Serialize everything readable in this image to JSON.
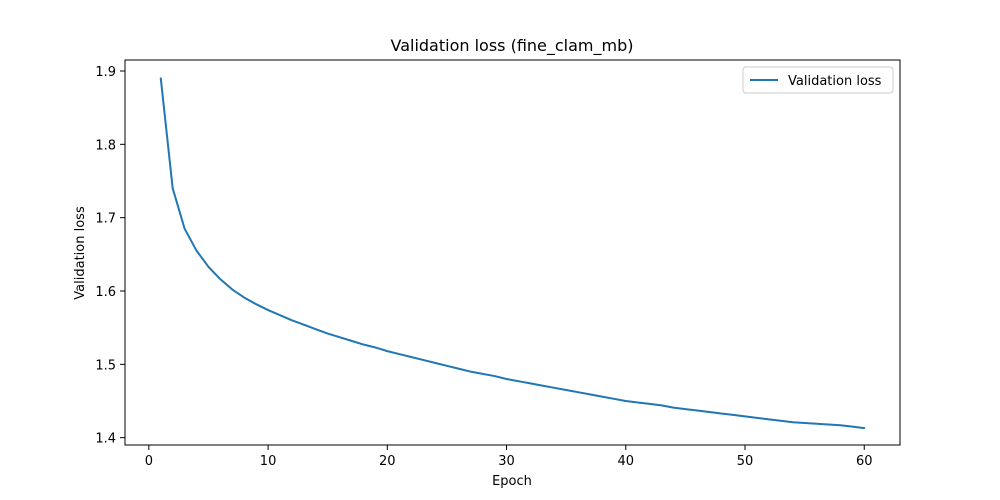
{
  "chart_data": {
    "type": "line",
    "title": "Validation loss (fine_clam_mb)",
    "xlabel": "Epoch",
    "ylabel": "Validation loss",
    "xlim": [
      -2,
      63
    ],
    "ylim": [
      1.39,
      1.915
    ],
    "xticks": [
      0,
      10,
      20,
      30,
      40,
      50,
      60
    ],
    "yticks": [
      1.4,
      1.5,
      1.6,
      1.7,
      1.8,
      1.9
    ],
    "grid": false,
    "legend": {
      "placement": "top-right",
      "entries": [
        "Validation loss"
      ]
    },
    "series": [
      {
        "name": "Validation loss",
        "color": "#1f77b4",
        "x": [
          1,
          2,
          3,
          4,
          5,
          6,
          7,
          8,
          9,
          10,
          11,
          12,
          13,
          14,
          15,
          16,
          17,
          18,
          19,
          20,
          21,
          22,
          23,
          24,
          25,
          26,
          27,
          28,
          29,
          30,
          31,
          32,
          33,
          34,
          35,
          36,
          37,
          38,
          39,
          40,
          41,
          42,
          43,
          44,
          45,
          46,
          47,
          48,
          49,
          50,
          51,
          52,
          53,
          54,
          55,
          56,
          57,
          58,
          59,
          60
        ],
        "y": [
          1.89,
          1.74,
          1.685,
          1.655,
          1.633,
          1.616,
          1.602,
          1.591,
          1.582,
          1.574,
          1.567,
          1.56,
          1.554,
          1.548,
          1.542,
          1.537,
          1.532,
          1.527,
          1.523,
          1.518,
          1.514,
          1.51,
          1.506,
          1.502,
          1.498,
          1.494,
          1.49,
          1.487,
          1.484,
          1.48,
          1.477,
          1.474,
          1.471,
          1.468,
          1.465,
          1.462,
          1.459,
          1.456,
          1.453,
          1.45,
          1.448,
          1.446,
          1.444,
          1.441,
          1.439,
          1.437,
          1.435,
          1.433,
          1.431,
          1.429,
          1.427,
          1.425,
          1.423,
          1.421,
          1.42,
          1.419,
          1.418,
          1.417,
          1.415,
          1.413
        ]
      }
    ]
  }
}
